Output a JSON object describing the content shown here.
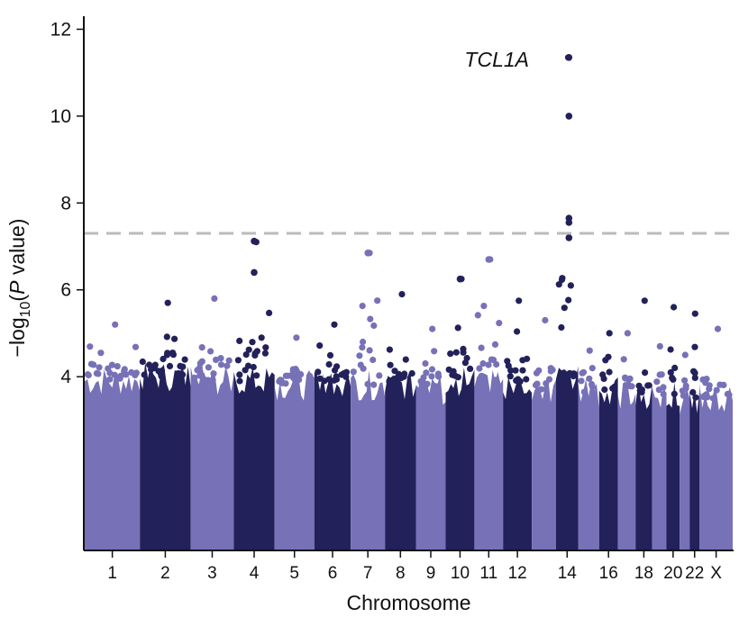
{
  "chart_data": {
    "type": "scatter",
    "subtype": "manhattan",
    "xlabel": "Chromosome",
    "ylabel_prefix": "−log",
    "ylabel_sub": "10",
    "ylabel_open": "(",
    "ylabel_italic": "P",
    "ylabel_rest": " value)",
    "ylim": [
      0,
      12.3
    ],
    "yticks": [
      4,
      6,
      8,
      10,
      12
    ],
    "significance_threshold": 7.3,
    "threshold_style": "dashed grey",
    "colors": {
      "light": "#7771b7",
      "dark": "#22215a",
      "threshold": "#bbbbbb"
    },
    "chromosomes": [
      {
        "name": "1",
        "label": "1",
        "floor": 3.9,
        "peak": 5.2
      },
      {
        "name": "2",
        "label": "2",
        "floor": 4.0,
        "peak": 5.7
      },
      {
        "name": "3",
        "label": "3",
        "floor": 3.9,
        "peak": 5.8
      },
      {
        "name": "4",
        "label": "4",
        "floor": 3.9,
        "peak": 7.1
      },
      {
        "name": "5",
        "label": "5",
        "floor": 3.8,
        "peak": 4.9
      },
      {
        "name": "6",
        "label": "6",
        "floor": 3.9,
        "peak": 5.2
      },
      {
        "name": "7",
        "label": "7",
        "floor": 3.8,
        "peak": 6.85
      },
      {
        "name": "8",
        "label": "8",
        "floor": 3.8,
        "peak": 5.9
      },
      {
        "name": "9",
        "label": "9",
        "floor": 3.7,
        "peak": 5.1
      },
      {
        "name": "10",
        "label": "10",
        "floor": 3.9,
        "peak": 6.25
      },
      {
        "name": "11",
        "label": "11",
        "floor": 3.9,
        "peak": 6.7
      },
      {
        "name": "12",
        "label": "12",
        "floor": 3.8,
        "peak": 5.75
      },
      {
        "name": "13",
        "label": "",
        "floor": 3.7,
        "peak": 5.3
      },
      {
        "name": "14",
        "label": "14",
        "floor": 3.9,
        "peak": 11.35
      },
      {
        "name": "15",
        "label": "",
        "floor": 3.6,
        "peak": 4.6
      },
      {
        "name": "16",
        "label": "16",
        "floor": 3.7,
        "peak": 5.0
      },
      {
        "name": "17",
        "label": "",
        "floor": 3.6,
        "peak": 5.0
      },
      {
        "name": "18",
        "label": "18",
        "floor": 3.6,
        "peak": 5.75
      },
      {
        "name": "19",
        "label": "",
        "floor": 3.5,
        "peak": 4.7
      },
      {
        "name": "20",
        "label": "20",
        "floor": 3.6,
        "peak": 5.6
      },
      {
        "name": "21",
        "label": "",
        "floor": 3.4,
        "peak": 4.5
      },
      {
        "name": "22",
        "label": "22",
        "floor": 3.5,
        "peak": 5.45
      },
      {
        "name": "X",
        "label": "X",
        "floor": 3.5,
        "peak": 5.1
      }
    ],
    "top_hits": [
      {
        "chromosome": "4",
        "neglog10p": 7.12
      },
      {
        "chromosome": "4",
        "neglog10p": 6.4
      },
      {
        "chromosome": "7",
        "neglog10p": 6.85
      },
      {
        "chromosome": "10",
        "neglog10p": 6.25
      },
      {
        "chromosome": "11",
        "neglog10p": 6.7
      },
      {
        "chromosome": "14",
        "neglog10p": 11.35
      },
      {
        "chromosome": "14",
        "neglog10p": 10.0
      },
      {
        "chromosome": "14",
        "neglog10p": 7.65
      },
      {
        "chromosome": "14",
        "neglog10p": 7.55
      },
      {
        "chromosome": "14",
        "neglog10p": 7.2
      }
    ],
    "annotations": [
      {
        "text": "TCL1A",
        "chromosome": "14",
        "neglog10p": 11.3
      }
    ]
  }
}
